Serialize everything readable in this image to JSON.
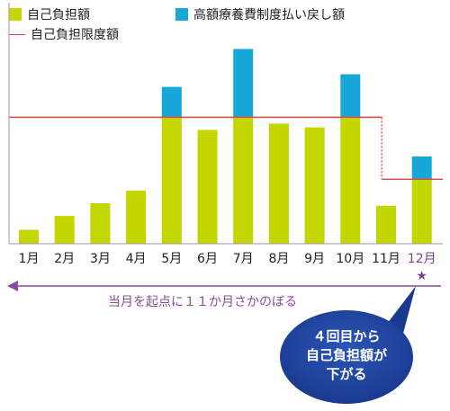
{
  "legend": {
    "self_pay": "自己負担額",
    "refund": "高額療養費制度払い戻し額",
    "limit": "自己負担限度額"
  },
  "colors": {
    "self_pay": "#c3d600",
    "refund": "#17a7d9",
    "limit": "#e8433f",
    "arrow": "#8c4a9a",
    "bubble": "#1a3a8f",
    "highlight": "#7a3f8f"
  },
  "arrow_label": "当月を起点に１１か月さかのぼる",
  "star": "★",
  "bubble_lines": [
    "４回目から",
    "自己負担額が",
    "下がる"
  ],
  "chart_data": {
    "type": "bar",
    "stacked": true,
    "categories": [
      "1月",
      "2月",
      "3月",
      "4月",
      "5月",
      "6月",
      "7月",
      "8月",
      "9月",
      "10月",
      "11月",
      "12月"
    ],
    "series": [
      {
        "name": "自己負担額",
        "values": [
          11,
          22,
          32,
          42,
          100,
          90,
          100,
          95,
          92,
          100,
          30,
          51
        ]
      },
      {
        "name": "高額療養費制度払い戻し額",
        "values": [
          0,
          0,
          0,
          0,
          24,
          0,
          54,
          0,
          0,
          34,
          0,
          18
        ]
      }
    ],
    "limit_line": {
      "name": "自己負担限度額",
      "values": [
        100,
        100,
        100,
        100,
        100,
        100,
        100,
        100,
        100,
        100,
        51,
        51
      ]
    },
    "highlight_category": "12月",
    "ylim": [
      0,
      160
    ],
    "grid": false
  }
}
